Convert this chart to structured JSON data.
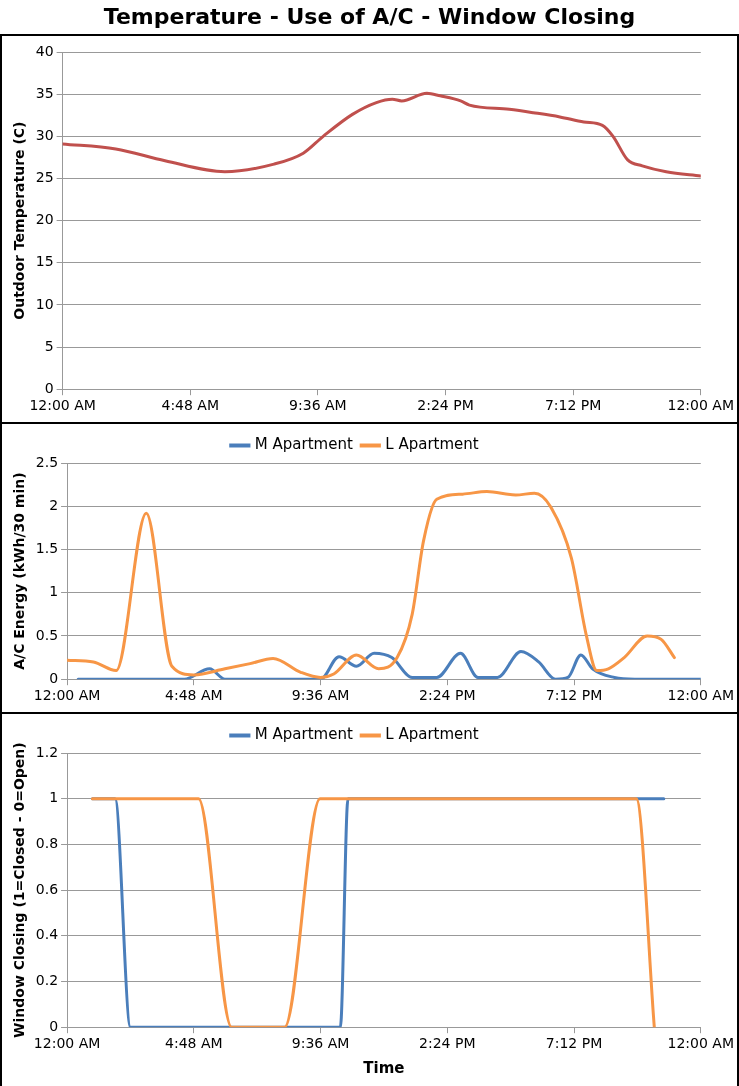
{
  "chart_data": [
    {
      "type": "line",
      "title": "Temperature - Use of A/C - Window Closing",
      "ylabel": "Outdoor Temperature (C)",
      "xlim": [
        0,
        24
      ],
      "xticks": [
        {
          "value": 0,
          "label": "12:00 AM"
        },
        {
          "value": 4.8,
          "label": "4:48 AM"
        },
        {
          "value": 9.6,
          "label": "9:36 AM"
        },
        {
          "value": 14.4,
          "label": "2:24 PM"
        },
        {
          "value": 19.2,
          "label": "7:12 PM"
        },
        {
          "value": 24,
          "label": "12:00 AM"
        }
      ],
      "ylim": [
        0,
        40
      ],
      "yticks": [
        0,
        5,
        10,
        15,
        20,
        25,
        30,
        35,
        40
      ],
      "grid": "y",
      "legend": false,
      "marker": "none",
      "line_style": "solid",
      "series": [
        {
          "color": "#c0504d",
          "x": [
            0,
            2.0,
            3.85,
            6.1,
            7.95,
            9.05,
            9.8,
            10.9,
            11.8,
            12.4,
            12.75,
            13.7,
            14.2,
            14.97,
            15.3,
            16.8,
            17.7,
            18.7,
            19.6,
            20.3,
            20.7,
            21.25,
            21.8,
            22.7,
            24
          ],
          "values": [
            29.1,
            28.5,
            27.1,
            25.8,
            26.7,
            28.0,
            30.0,
            32.6,
            34.0,
            34.4,
            34.2,
            35.1,
            34.8,
            34.2,
            33.7,
            33.2,
            32.8,
            32.3,
            31.7,
            31.3,
            30.0,
            27.2,
            26.5,
            25.8,
            25.3
          ]
        }
      ]
    },
    {
      "type": "line",
      "ylabel": "A/C Energy (kWh/30 min)",
      "xlim": [
        0,
        24
      ],
      "xticks": [
        {
          "value": 0,
          "label": "12:00 AM"
        },
        {
          "value": 4.8,
          "label": "4:48 AM"
        },
        {
          "value": 9.6,
          "label": "9:36 AM"
        },
        {
          "value": 14.4,
          "label": "2:24 PM"
        },
        {
          "value": 19.2,
          "label": "7:12 PM"
        },
        {
          "value": 24,
          "label": "12:00 AM"
        }
      ],
      "ylim": [
        0,
        2.5
      ],
      "yticks": [
        0,
        0.5,
        1,
        1.5,
        2,
        2.5
      ],
      "grid": "y",
      "legend": "top",
      "marker": "none",
      "line_style": "solid",
      "series": [
        {
          "name": "M Apartment",
          "color": "#4a7ebb",
          "x": [
            0.42,
            4.44,
            5.4,
            5.98,
            9.6,
            10.3,
            10.96,
            11.63,
            12.3,
            13.07,
            14.0,
            14.9,
            15.56,
            16.3,
            17.19,
            17.86,
            18.5,
            18.97,
            19.46,
            19.9,
            20.73,
            21.5,
            24
          ],
          "values": [
            0,
            0,
            0.12,
            0,
            0,
            0.26,
            0.15,
            0.3,
            0.25,
            0.02,
            0.02,
            0.3,
            0.02,
            0.02,
            0.32,
            0.2,
            0,
            0.02,
            0.28,
            0.12,
            0.02,
            0,
            0
          ]
        },
        {
          "name": "L Apartment",
          "color": "#f79646",
          "x": [
            0,
            1.0,
            1.86,
            3.0,
            3.97,
            4.8,
            5.98,
            6.93,
            7.8,
            8.85,
            9.6,
            10.1,
            10.96,
            11.8,
            12.5,
            13.07,
            13.5,
            14.0,
            14.98,
            15.9,
            16.99,
            17.7,
            18.3,
            19.1,
            19.67,
            20.06,
            20.5,
            21.1,
            21.97,
            22.5,
            23.0
          ],
          "values": [
            0.22,
            0.2,
            0.1,
            1.92,
            0.15,
            0.05,
            0.12,
            0.18,
            0.24,
            0.08,
            0.02,
            0.06,
            0.28,
            0.12,
            0.25,
            0.75,
            1.6,
            2.08,
            2.14,
            2.17,
            2.13,
            2.15,
            2.0,
            1.4,
            0.5,
            0.1,
            0.12,
            0.25,
            0.5,
            0.46,
            0.25
          ]
        }
      ]
    },
    {
      "type": "line",
      "xlabel": "Time",
      "ylabel": "Window Closing (1=Closed - 0=Open)",
      "xlim": [
        0,
        24
      ],
      "xticks": [
        {
          "value": 0,
          "label": "12:00 AM"
        },
        {
          "value": 4.8,
          "label": "4:48 AM"
        },
        {
          "value": 9.6,
          "label": "9:36 AM"
        },
        {
          "value": 14.4,
          "label": "2:24 PM"
        },
        {
          "value": 19.2,
          "label": "7:12 PM"
        },
        {
          "value": 24,
          "label": "12:00 AM"
        }
      ],
      "ylim": [
        0,
        1.2
      ],
      "yticks": [
        0,
        0.2,
        0.4,
        0.6,
        0.8,
        1,
        1.2
      ],
      "grid": "y",
      "legend": "top",
      "marker": "none",
      "line_style": "solid",
      "series": [
        {
          "name": "M Apartment",
          "color": "#4a7ebb",
          "x": [
            0.96,
            1.82,
            2.4,
            10.35,
            10.64,
            22.6
          ],
          "values": [
            1,
            1,
            0,
            0,
            1,
            1
          ]
        },
        {
          "name": "L Apartment",
          "color": "#f79646",
          "x": [
            0.96,
            4.98,
            6.23,
            8.24,
            9.58,
            21.56,
            22.24
          ],
          "values": [
            1,
            1,
            0,
            0,
            1,
            1,
            0
          ]
        }
      ]
    }
  ]
}
